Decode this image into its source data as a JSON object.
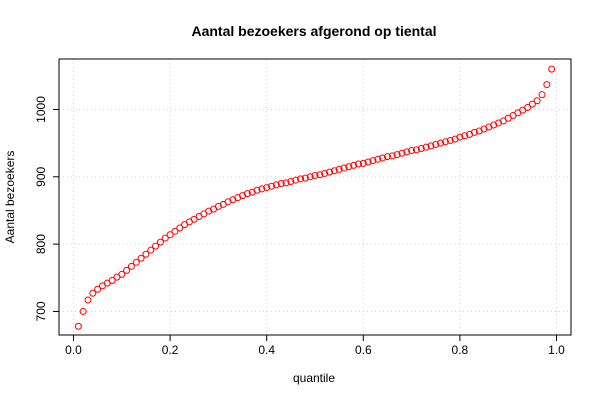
{
  "chart_data": {
    "type": "scatter",
    "title": "Aantal bezoekers afgerond op tiental",
    "xlabel": "quantile",
    "ylabel": "Aantal bezoekers",
    "xlim": [
      -0.03,
      1.03
    ],
    "ylim": [
      665,
      1075
    ],
    "xticks": [
      0,
      0.2,
      0.4,
      0.6,
      0.8,
      1
    ],
    "xtick_labels": [
      "0.0",
      "0.2",
      "0.4",
      "0.6",
      "0.8",
      "1.0"
    ],
    "yticks": [
      700,
      800,
      900,
      1000
    ],
    "ytick_labels": [
      "700",
      "800",
      "900",
      "1000"
    ],
    "grid": true,
    "marker": "open-circle",
    "point_color": "#ff0000",
    "x": [
      0.01,
      0.02,
      0.03,
      0.04,
      0.05,
      0.06,
      0.07,
      0.08,
      0.09,
      0.1,
      0.11,
      0.12,
      0.13,
      0.14,
      0.15,
      0.16,
      0.17,
      0.18,
      0.19,
      0.2,
      0.21,
      0.22,
      0.23,
      0.24,
      0.25,
      0.26,
      0.27,
      0.28,
      0.29,
      0.3,
      0.31,
      0.32,
      0.33,
      0.34,
      0.35,
      0.36,
      0.37,
      0.38,
      0.39,
      0.4,
      0.41,
      0.42,
      0.43,
      0.44,
      0.45,
      0.46,
      0.47,
      0.48,
      0.49,
      0.5,
      0.51,
      0.52,
      0.53,
      0.54,
      0.55,
      0.56,
      0.57,
      0.58,
      0.59,
      0.6,
      0.61,
      0.62,
      0.63,
      0.64,
      0.65,
      0.66,
      0.67,
      0.68,
      0.69,
      0.7,
      0.71,
      0.72,
      0.73,
      0.74,
      0.75,
      0.76,
      0.77,
      0.78,
      0.79,
      0.8,
      0.81,
      0.82,
      0.83,
      0.84,
      0.85,
      0.86,
      0.87,
      0.88,
      0.89,
      0.9,
      0.91,
      0.92,
      0.93,
      0.94,
      0.95,
      0.96,
      0.97,
      0.98,
      0.99
    ],
    "y": [
      678,
      700,
      717,
      727,
      733,
      738,
      742,
      746,
      751,
      755,
      761,
      767,
      773,
      779,
      785,
      791,
      797,
      803,
      809,
      814,
      819,
      824,
      829,
      833,
      837,
      841,
      845,
      849,
      852,
      856,
      859,
      863,
      866,
      869,
      872,
      875,
      877,
      880,
      882,
      884,
      886,
      888,
      890,
      891,
      893,
      895,
      897,
      898,
      900,
      902,
      903,
      905,
      907,
      909,
      911,
      913,
      915,
      917,
      919,
      920,
      922,
      924,
      926,
      928,
      930,
      931,
      933,
      935,
      937,
      939,
      940,
      942,
      944,
      946,
      948,
      950,
      952,
      954,
      956,
      959,
      961,
      963,
      966,
      968,
      971,
      974,
      977,
      980,
      983,
      987,
      991,
      995,
      999,
      1003,
      1008,
      1013,
      1022,
      1037,
      1060
    ]
  }
}
